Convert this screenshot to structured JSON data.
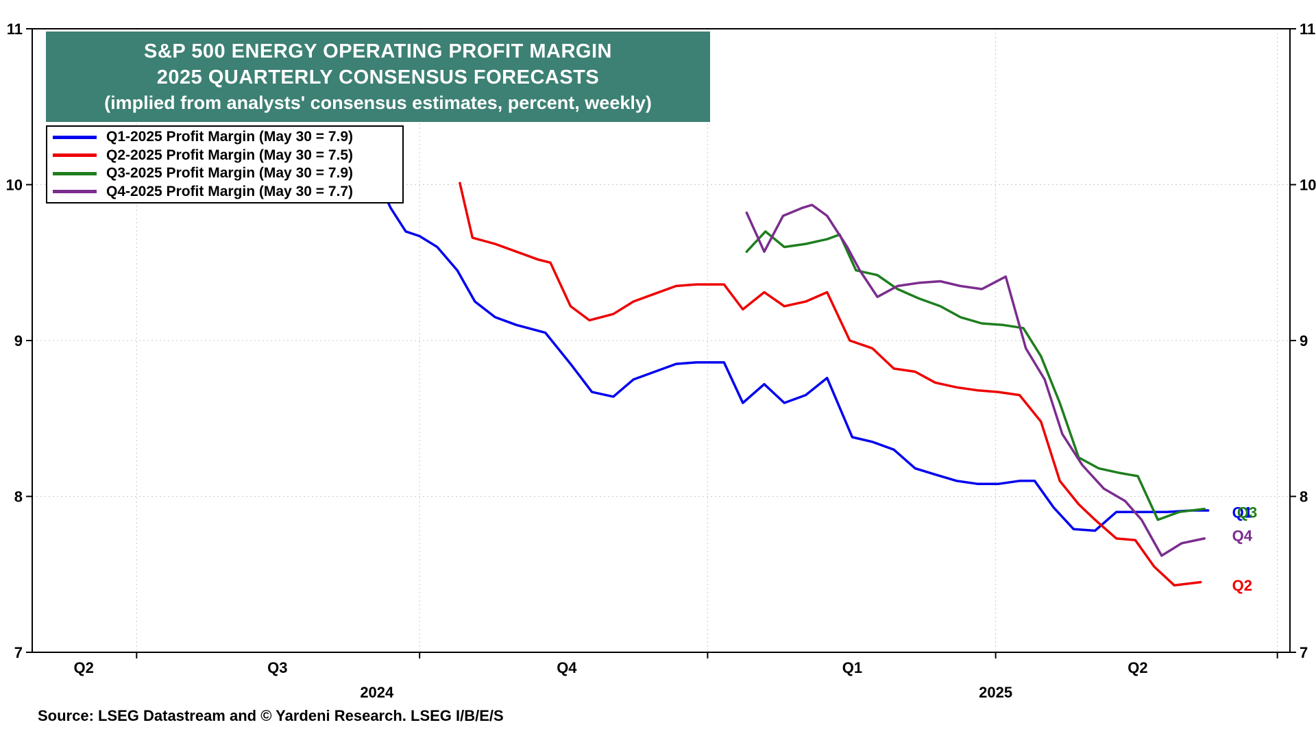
{
  "title": {
    "line1": "S&P 500 ENERGY OPERATING PROFIT MARGIN",
    "line2": "2025 QUARTERLY CONSENSUS FORECASTS",
    "line3": "(implied from analysts' consensus estimates, percent, weekly)",
    "bg_color": "#3d8074",
    "text_color": "#ffffff"
  },
  "legend": {
    "items": [
      {
        "label": "Q1-2025 Profit Margin (May 30 = 7.9)",
        "color": "#0000ee"
      },
      {
        "label": "Q2-2025 Profit Margin (May 30 = 7.5)",
        "color": "#ee0000"
      },
      {
        "label": "Q3-2025 Profit Margin (May 30 = 7.9)",
        "color": "#1e7e1e"
      },
      {
        "label": "Q4-2025 Profit Margin (May 30 = 7.7)",
        "color": "#7b2d8e"
      }
    ]
  },
  "source": "Source: LSEG Datastream and © Yardeni Research. LSEG I/B/E/S",
  "chart_data": {
    "type": "line",
    "ylim": [
      7,
      11
    ],
    "yticks": [
      7,
      8,
      9,
      10,
      11
    ],
    "grid": true,
    "legend_position": "top-left",
    "x_axis": {
      "quarter_labels": [
        {
          "label": "Q2",
          "pos": 0.041
        },
        {
          "label": "Q3",
          "pos": 0.195
        },
        {
          "label": "Q4",
          "pos": 0.425
        },
        {
          "label": "Q1",
          "pos": 0.652
        },
        {
          "label": "Q2",
          "pos": 0.879
        }
      ],
      "year_labels": [
        {
          "label": "2024",
          "pos": 0.274
        },
        {
          "label": "2025",
          "pos": 0.766
        }
      ],
      "gridline_positions": [
        0.083,
        0.308,
        0.537,
        0.766,
        0.99
      ]
    },
    "series": [
      {
        "id": "q1-2025",
        "name": "Q1-2025 Profit Margin",
        "color": "#0000ee",
        "final_value": 7.9,
        "points": [
          [
            0.262,
            10.25
          ],
          [
            0.285,
            9.85
          ],
          [
            0.297,
            9.7
          ],
          [
            0.308,
            9.67
          ],
          [
            0.322,
            9.6
          ],
          [
            0.338,
            9.45
          ],
          [
            0.352,
            9.25
          ],
          [
            0.368,
            9.15
          ],
          [
            0.385,
            9.1
          ],
          [
            0.408,
            9.05
          ],
          [
            0.428,
            8.85
          ],
          [
            0.445,
            8.67
          ],
          [
            0.462,
            8.64
          ],
          [
            0.478,
            8.75
          ],
          [
            0.495,
            8.8
          ],
          [
            0.512,
            8.85
          ],
          [
            0.528,
            8.86
          ],
          [
            0.55,
            8.86
          ],
          [
            0.565,
            8.6
          ],
          [
            0.582,
            8.72
          ],
          [
            0.598,
            8.6
          ],
          [
            0.615,
            8.65
          ],
          [
            0.632,
            8.76
          ],
          [
            0.652,
            8.38
          ],
          [
            0.668,
            8.35
          ],
          [
            0.685,
            8.3
          ],
          [
            0.702,
            8.18
          ],
          [
            0.718,
            8.14
          ],
          [
            0.735,
            8.1
          ],
          [
            0.752,
            8.08
          ],
          [
            0.768,
            8.08
          ],
          [
            0.785,
            8.1
          ],
          [
            0.797,
            8.1
          ],
          [
            0.812,
            7.93
          ],
          [
            0.828,
            7.79
          ],
          [
            0.845,
            7.78
          ],
          [
            0.862,
            7.9
          ],
          [
            0.882,
            7.9
          ],
          [
            0.902,
            7.9
          ],
          [
            0.922,
            7.91
          ],
          [
            0.935,
            7.91
          ]
        ]
      },
      {
        "id": "q2-2025",
        "name": "Q2-2025 Profit Margin",
        "color": "#ee0000",
        "final_value": 7.5,
        "points": [
          [
            0.34,
            10.01
          ],
          [
            0.35,
            9.66
          ],
          [
            0.368,
            9.62
          ],
          [
            0.385,
            9.57
          ],
          [
            0.402,
            9.52
          ],
          [
            0.412,
            9.5
          ],
          [
            0.428,
            9.22
          ],
          [
            0.443,
            9.13
          ],
          [
            0.462,
            9.17
          ],
          [
            0.478,
            9.25
          ],
          [
            0.495,
            9.3
          ],
          [
            0.512,
            9.35
          ],
          [
            0.528,
            9.36
          ],
          [
            0.55,
            9.36
          ],
          [
            0.565,
            9.2
          ],
          [
            0.582,
            9.31
          ],
          [
            0.598,
            9.22
          ],
          [
            0.615,
            9.25
          ],
          [
            0.632,
            9.31
          ],
          [
            0.65,
            9.0
          ],
          [
            0.668,
            8.95
          ],
          [
            0.685,
            8.82
          ],
          [
            0.702,
            8.8
          ],
          [
            0.718,
            8.73
          ],
          [
            0.735,
            8.7
          ],
          [
            0.752,
            8.68
          ],
          [
            0.768,
            8.67
          ],
          [
            0.785,
            8.65
          ],
          [
            0.802,
            8.48
          ],
          [
            0.817,
            8.1
          ],
          [
            0.832,
            7.95
          ],
          [
            0.845,
            7.85
          ],
          [
            0.862,
            7.73
          ],
          [
            0.877,
            7.72
          ],
          [
            0.892,
            7.55
          ],
          [
            0.908,
            7.43
          ],
          [
            0.929,
            7.45
          ]
        ]
      },
      {
        "id": "q3-2025",
        "name": "Q3-2025 Profit Margin",
        "color": "#1e7e1e",
        "final_value": 7.9,
        "points": [
          [
            0.568,
            9.57
          ],
          [
            0.583,
            9.7
          ],
          [
            0.598,
            9.6
          ],
          [
            0.615,
            9.62
          ],
          [
            0.632,
            9.65
          ],
          [
            0.642,
            9.68
          ],
          [
            0.655,
            9.45
          ],
          [
            0.672,
            9.42
          ],
          [
            0.688,
            9.33
          ],
          [
            0.705,
            9.27
          ],
          [
            0.722,
            9.22
          ],
          [
            0.738,
            9.15
          ],
          [
            0.755,
            9.11
          ],
          [
            0.772,
            9.1
          ],
          [
            0.788,
            9.08
          ],
          [
            0.802,
            8.9
          ],
          [
            0.817,
            8.6
          ],
          [
            0.832,
            8.25
          ],
          [
            0.848,
            8.18
          ],
          [
            0.865,
            8.15
          ],
          [
            0.879,
            8.13
          ],
          [
            0.895,
            7.85
          ],
          [
            0.912,
            7.9
          ],
          [
            0.932,
            7.92
          ]
        ]
      },
      {
        "id": "q4-2025",
        "name": "Q4-2025 Profit Margin",
        "color": "#7b2d8e",
        "final_value": 7.7,
        "points": [
          [
            0.568,
            9.82
          ],
          [
            0.582,
            9.57
          ],
          [
            0.597,
            9.8
          ],
          [
            0.612,
            9.85
          ],
          [
            0.62,
            9.87
          ],
          [
            0.632,
            9.8
          ],
          [
            0.648,
            9.6
          ],
          [
            0.658,
            9.45
          ],
          [
            0.672,
            9.28
          ],
          [
            0.688,
            9.35
          ],
          [
            0.705,
            9.37
          ],
          [
            0.722,
            9.38
          ],
          [
            0.738,
            9.35
          ],
          [
            0.755,
            9.33
          ],
          [
            0.774,
            9.41
          ],
          [
            0.79,
            8.95
          ],
          [
            0.805,
            8.75
          ],
          [
            0.819,
            8.4
          ],
          [
            0.835,
            8.2
          ],
          [
            0.852,
            8.05
          ],
          [
            0.869,
            7.97
          ],
          [
            0.882,
            7.85
          ],
          [
            0.898,
            7.62
          ],
          [
            0.914,
            7.7
          ],
          [
            0.932,
            7.73
          ]
        ]
      }
    ],
    "end_labels": [
      {
        "text": "Q1",
        "color": "#0000ee",
        "x": 0.954,
        "y": 7.9
      },
      {
        "text": "Q3",
        "color": "#1e7e1e",
        "x": 0.958,
        "y": 7.9
      },
      {
        "text": "Q4",
        "color": "#7b2d8e",
        "x": 0.954,
        "y": 7.75
      },
      {
        "text": "Q2",
        "color": "#ee0000",
        "x": 0.954,
        "y": 7.43
      }
    ]
  }
}
